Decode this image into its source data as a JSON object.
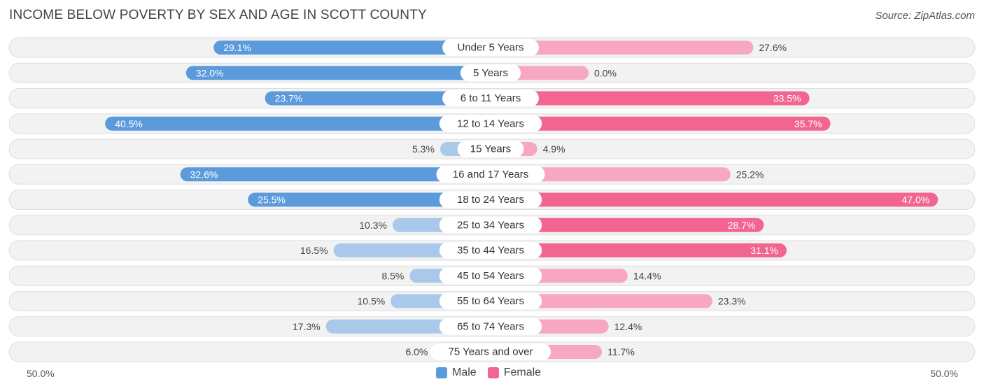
{
  "title": "INCOME BELOW POVERTY BY SEX AND AGE IN SCOTT COUNTY",
  "source": "Source: ZipAtlas.com",
  "colors": {
    "male_dark": "#5b9bdc",
    "male_light": "#a9c8ea",
    "female_dark": "#f26590",
    "female_light": "#f7a8c0",
    "row_bg": "#f2f2f2",
    "row_border": "#dedede"
  },
  "legend": {
    "male": "Male",
    "female": "Female"
  },
  "chart_data": {
    "type": "bar",
    "orientation": "horizontal-diverging",
    "title": "INCOME BELOW POVERTY BY SEX AND AGE IN SCOTT COUNTY",
    "xlim": [
      -50,
      50
    ],
    "axis_left_label": "50.0%",
    "axis_right_label": "50.0%",
    "categories": [
      "Under 5 Years",
      "5 Years",
      "6 to 11 Years",
      "12 to 14 Years",
      "15 Years",
      "16 and 17 Years",
      "18 to 24 Years",
      "25 to 34 Years",
      "35 to 44 Years",
      "45 to 54 Years",
      "55 to 64 Years",
      "65 to 74 Years",
      "75 Years and over"
    ],
    "series": [
      {
        "name": "Male",
        "values": [
          29.1,
          32.0,
          23.7,
          40.5,
          5.3,
          32.6,
          25.5,
          10.3,
          16.5,
          8.5,
          10.5,
          17.3,
          6.0
        ],
        "labels": [
          "29.1%",
          "32.0%",
          "23.7%",
          "40.5%",
          "5.3%",
          "32.6%",
          "25.5%",
          "10.3%",
          "16.5%",
          "8.5%",
          "10.5%",
          "17.3%",
          "6.0%"
        ]
      },
      {
        "name": "Female",
        "values": [
          27.6,
          0.0,
          33.5,
          35.7,
          4.9,
          25.2,
          47.0,
          28.7,
          31.1,
          14.4,
          23.3,
          12.4,
          11.7
        ],
        "labels": [
          "27.6%",
          "0.0%",
          "33.5%",
          "35.7%",
          "4.9%",
          "25.2%",
          "47.0%",
          "28.7%",
          "31.1%",
          "14.4%",
          "23.3%",
          "12.4%",
          "11.7%"
        ]
      }
    ]
  }
}
